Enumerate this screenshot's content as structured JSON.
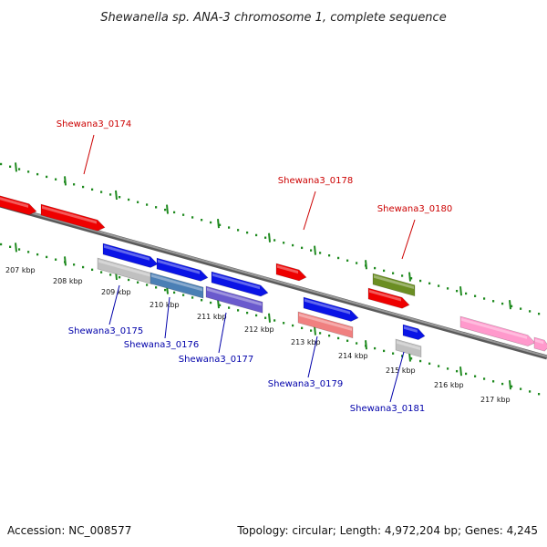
{
  "title": "Shewanella sp. ANA-3 chromosome 1, complete sequence",
  "footer": {
    "accession": "Accession: NC_008577",
    "summary": "Topology: circular; Length: 4,972,204 bp; Genes: 4,245"
  },
  "colors": {
    "backbone": "#808080",
    "tick": "#1f8a1f",
    "label_top": "#cc0000",
    "label_bottom": "#0000aa"
  },
  "ticks": [
    "207 kbp",
    "208 kbp",
    "209 kbp",
    "210 kbp",
    "211 kbp",
    "212 kbp",
    "213 kbp",
    "214 kbp",
    "215 kbp",
    "216 kbp",
    "217 kbp"
  ],
  "gene_labels": [
    {
      "id": "Shewana3_0174",
      "strand": "top"
    },
    {
      "id": "Shewana3_0178",
      "strand": "top"
    },
    {
      "id": "Shewana3_0180",
      "strand": "top"
    },
    {
      "id": "Shewana3_0175",
      "strand": "bottom"
    },
    {
      "id": "Shewana3_0176",
      "strand": "bottom"
    },
    {
      "id": "Shewana3_0177",
      "strand": "bottom"
    },
    {
      "id": "Shewana3_0179",
      "strand": "bottom"
    },
    {
      "id": "Shewana3_0181",
      "strand": "bottom"
    }
  ],
  "features": [
    {
      "name": "feature-red-1",
      "color": "#ee0000"
    },
    {
      "name": "feature-red-2",
      "color": "#ee0000"
    },
    {
      "name": "feature-blue-175",
      "color": "#0a14e6"
    },
    {
      "name": "feature-gray-175",
      "color": "#c0c0c0"
    },
    {
      "name": "feature-blue-176",
      "color": "#0a14e6"
    },
    {
      "name": "feature-steelblue-176",
      "color": "#4a7fb5"
    },
    {
      "name": "feature-blue-177",
      "color": "#0a14e6"
    },
    {
      "name": "feature-slate-177",
      "color": "#6a5acd"
    },
    {
      "name": "feature-red-178",
      "color": "#ee0000"
    },
    {
      "name": "feature-blue-179",
      "color": "#0a14e6"
    },
    {
      "name": "feature-salmon-179",
      "color": "#f08080"
    },
    {
      "name": "feature-olive-180",
      "color": "#6b8e23"
    },
    {
      "name": "feature-red-180",
      "color": "#ee0000"
    },
    {
      "name": "feature-blue-181",
      "color": "#0a14e6"
    },
    {
      "name": "feature-gray-181",
      "color": "#c0c0c0"
    },
    {
      "name": "feature-pink-1",
      "color": "#ff99cc"
    },
    {
      "name": "feature-pink-2",
      "color": "#ff99cc"
    }
  ]
}
